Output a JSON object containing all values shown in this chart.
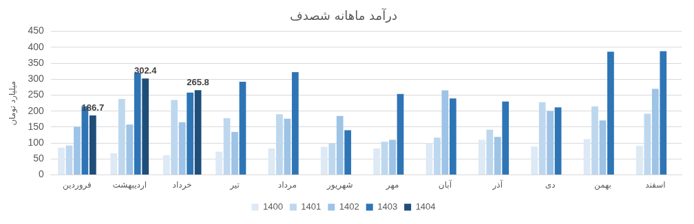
{
  "chart_data": {
    "type": "bar",
    "title": "درآمد ماهانه شصدف",
    "ylabel": "میلیارد تومان",
    "categories": [
      "فروردین",
      "اردیبهشت",
      "خرداد",
      "تیر",
      "مرداد",
      "شهریور",
      "مهر",
      "آبان",
      "آذر",
      "دی",
      "بهمن",
      "اسفند"
    ],
    "series": [
      {
        "name": "1400",
        "color": "#dde9f5",
        "values": [
          85,
          68,
          62,
          73,
          83,
          88,
          83,
          100,
          110,
          89,
          112,
          91
        ]
      },
      {
        "name": "1401",
        "color": "#bdd7ee",
        "values": [
          92,
          238,
          235,
          178,
          190,
          98,
          104,
          117,
          142,
          228,
          215,
          192
        ]
      },
      {
        "name": "1402",
        "color": "#9dc3e6",
        "values": [
          151,
          158,
          165,
          135,
          176,
          185,
          110,
          265,
          119,
          200,
          171,
          270
        ]
      },
      {
        "name": "1403",
        "color": "#2e75b6",
        "values": [
          215,
          320,
          258,
          292,
          322,
          140,
          254,
          240,
          230,
          212,
          386,
          388
        ]
      },
      {
        "name": "1404",
        "color": "#1f4e79",
        "values": [
          186.7,
          302.4,
          265.8,
          null,
          null,
          null,
          null,
          null,
          null,
          null,
          null,
          null
        ],
        "value_labels": [
          "186.7",
          "302.4",
          "265.8",
          null,
          null,
          null,
          null,
          null,
          null,
          null,
          null,
          null
        ]
      }
    ],
    "ylim": [
      0,
      450
    ],
    "yticks": [
      0,
      50,
      100,
      150,
      200,
      250,
      300,
      350,
      400,
      450
    ],
    "grid": "y",
    "legend": "bottom"
  }
}
